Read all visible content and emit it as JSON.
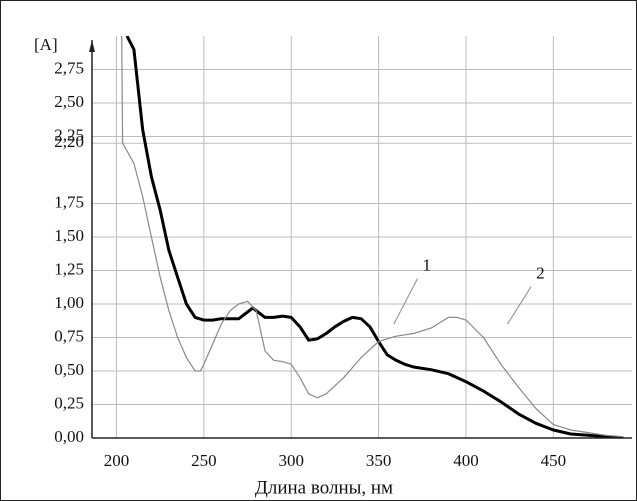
{
  "chart_data": {
    "type": "line",
    "y_label": "[A]",
    "x_label": "Длина волны, нм",
    "xlim": [
      186,
      495
    ],
    "ylim": [
      0,
      3.0
    ],
    "xticks": [
      200,
      250,
      300,
      350,
      400,
      450
    ],
    "yticks": [
      {
        "value": 0,
        "label": "0,00"
      },
      {
        "value": 0.25,
        "label": "0,25"
      },
      {
        "value": 0.5,
        "label": "0,50"
      },
      {
        "value": 0.75,
        "label": "0,75"
      },
      {
        "value": 1.0,
        "label": "1,00"
      },
      {
        "value": 1.25,
        "label": "1,25"
      },
      {
        "value": 1.5,
        "label": "1,50"
      },
      {
        "value": 1.75,
        "label": "1,75"
      },
      {
        "value": 2.2,
        "label": "2,20"
      },
      {
        "value": 2.25,
        "label": "2,25"
      },
      {
        "value": 2.5,
        "label": "2,50"
      },
      {
        "value": 2.75,
        "label": "2,75"
      }
    ],
    "grid": true,
    "series": [
      {
        "name": "1",
        "color": "#000000",
        "x": [
          206,
          210,
          215,
          220,
          225,
          230,
          235,
          240,
          245,
          250,
          255,
          260,
          270,
          278,
          285,
          290,
          295,
          300,
          305,
          310,
          315,
          320,
          325,
          330,
          335,
          340,
          345,
          350,
          355,
          360,
          365,
          370,
          380,
          390,
          400,
          410,
          420,
          430,
          440,
          450,
          460,
          470,
          480,
          490
        ],
        "values": [
          3.0,
          2.9,
          2.3,
          1.95,
          1.7,
          1.4,
          1.2,
          1.0,
          0.9,
          0.88,
          0.88,
          0.89,
          0.89,
          0.97,
          0.9,
          0.9,
          0.91,
          0.9,
          0.83,
          0.73,
          0.74,
          0.78,
          0.83,
          0.87,
          0.9,
          0.89,
          0.83,
          0.72,
          0.62,
          0.58,
          0.55,
          0.53,
          0.51,
          0.48,
          0.42,
          0.35,
          0.27,
          0.18,
          0.11,
          0.06,
          0.03,
          0.02,
          0.01,
          0.0
        ]
      },
      {
        "name": "2",
        "color": "#8a8a8a",
        "x": [
          203,
          203.5,
          210,
          215,
          220,
          225,
          230,
          235,
          240,
          245,
          248,
          250,
          255,
          260,
          265,
          270,
          275,
          280,
          285,
          290,
          295,
          300,
          305,
          310,
          315,
          320,
          330,
          340,
          350,
          360,
          370,
          380,
          390,
          395,
          400,
          410,
          420,
          430,
          440,
          450,
          460,
          470,
          480,
          490
        ],
        "values": [
          3.0,
          2.2,
          2.05,
          1.8,
          1.5,
          1.2,
          0.95,
          0.75,
          0.6,
          0.5,
          0.5,
          0.55,
          0.7,
          0.85,
          0.95,
          1.0,
          1.02,
          0.95,
          0.65,
          0.58,
          0.57,
          0.55,
          0.45,
          0.33,
          0.3,
          0.33,
          0.45,
          0.6,
          0.72,
          0.76,
          0.78,
          0.82,
          0.9,
          0.9,
          0.88,
          0.75,
          0.55,
          0.38,
          0.22,
          0.1,
          0.06,
          0.04,
          0.02,
          0.01
        ]
      }
    ]
  }
}
